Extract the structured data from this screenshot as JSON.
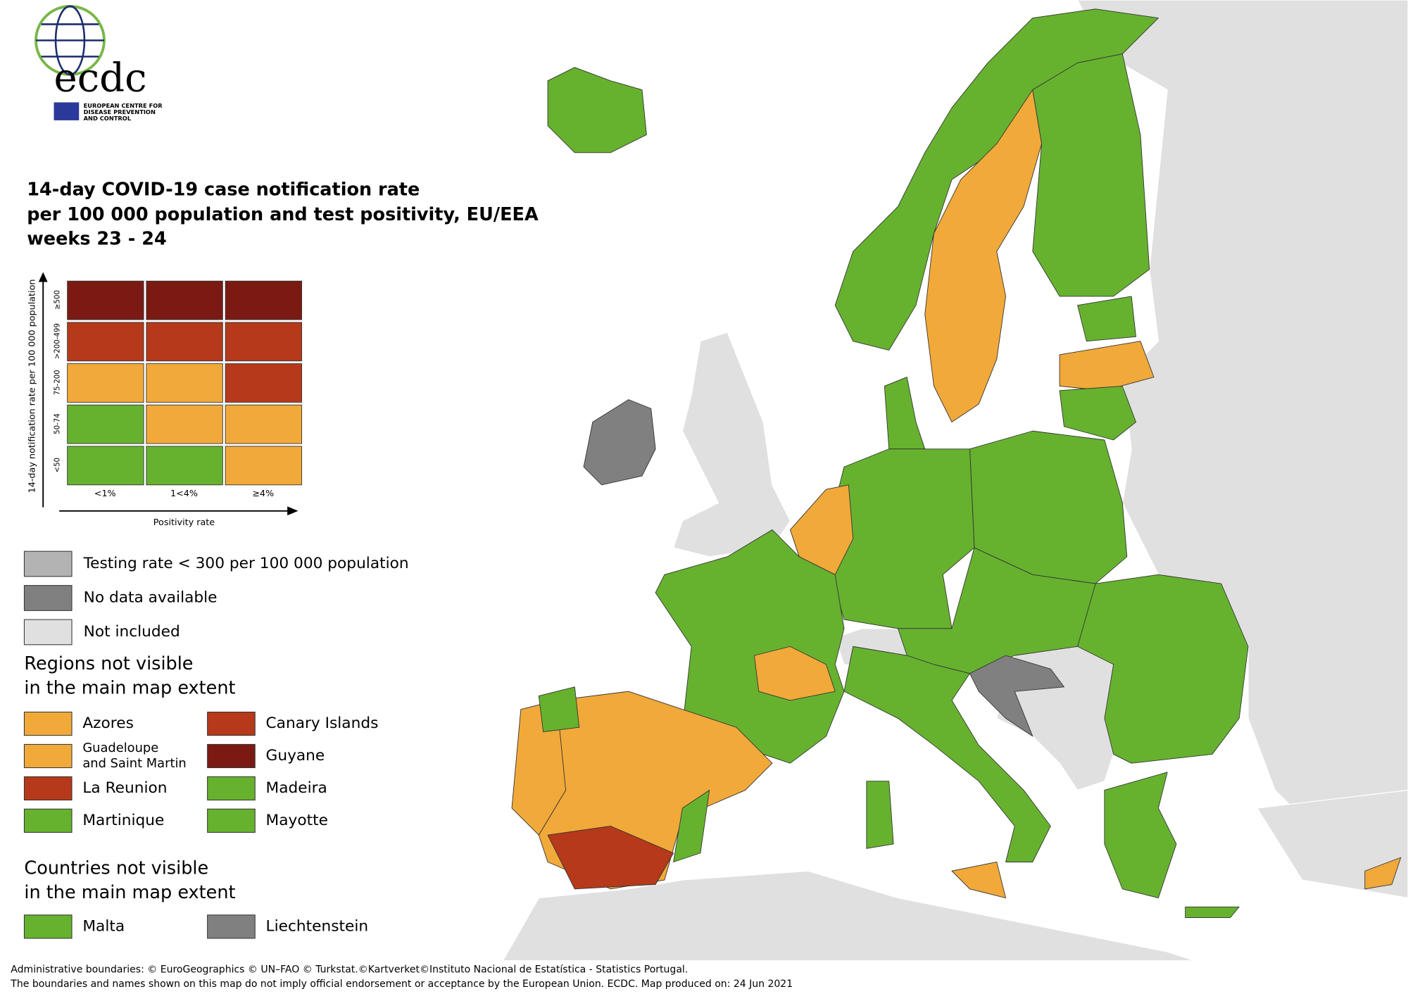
{
  "logo": {
    "name": "ecdc",
    "subtitle_lines": [
      "EUROPEAN CENTRE FOR",
      "DISEASE PREVENTION",
      "AND CONTROL"
    ]
  },
  "title_lines": [
    "14-day COVID-19 case notification rate",
    "per 100 000 population and test positivity, EU/EEA",
    "weeks 23 - 24"
  ],
  "matrix": {
    "y_axis_label": "14-day notification rate per 100 000 population",
    "x_axis_label": "Positivity rate",
    "rows": [
      "≥500",
      ">200-499",
      "75-200",
      "50-74",
      "<50"
    ],
    "columns": [
      "<1%",
      "1<4%",
      "≥4%"
    ],
    "colors": [
      [
        "#7b1a12",
        "#7b1a12",
        "#7b1a12"
      ],
      [
        "#b5391a",
        "#b5391a",
        "#b5391a"
      ],
      [
        "#f1a93a",
        "#f1a93a",
        "#b5391a"
      ],
      [
        "#66b22f",
        "#f1a93a",
        "#f1a93a"
      ],
      [
        "#66b22f",
        "#66b22f",
        "#f1a93a"
      ]
    ]
  },
  "legend": [
    {
      "label": "Testing rate < 300 per 100 000 population",
      "color": "#b3b3b3"
    },
    {
      "label": "No data available",
      "color": "#808080"
    },
    {
      "label": "Not included",
      "color": "#e0e0e0"
    }
  ],
  "regions": {
    "heading_lines": [
      "Regions not visible",
      "in the main map extent"
    ],
    "items": [
      {
        "label_lines": [
          "Azores"
        ],
        "color": "#f1a93a"
      },
      {
        "label_lines": [
          "Canary Islands"
        ],
        "color": "#b5391a"
      },
      {
        "label_lines": [
          "Guadeloupe",
          "and Saint Martin"
        ],
        "color": "#f1a93a"
      },
      {
        "label_lines": [
          "Guyane"
        ],
        "color": "#7b1a12"
      },
      {
        "label_lines": [
          "La Reunion"
        ],
        "color": "#b5391a"
      },
      {
        "label_lines": [
          "Madeira"
        ],
        "color": "#66b22f"
      },
      {
        "label_lines": [
          "Martinique"
        ],
        "color": "#66b22f"
      },
      {
        "label_lines": [
          "Mayotte"
        ],
        "color": "#66b22f"
      }
    ]
  },
  "countries": {
    "heading_lines": [
      "Countries not visible",
      "in the main map extent"
    ],
    "items": [
      {
        "label_lines": [
          "Malta"
        ],
        "color": "#66b22f"
      },
      {
        "label_lines": [
          "Liechtenstein"
        ],
        "color": "#808080"
      }
    ]
  },
  "footer_lines": [
    "Administrative boundaries: © EuroGeographics © UN–FAO © Turkstat.©Kartverket©Instituto Nacional de Estatística - Statistics Portugal.",
    "The boundaries and names shown on this map do not imply official endorsement or acceptance by the European Union. ECDC. Map produced on: 24 Jun 2021"
  ]
}
